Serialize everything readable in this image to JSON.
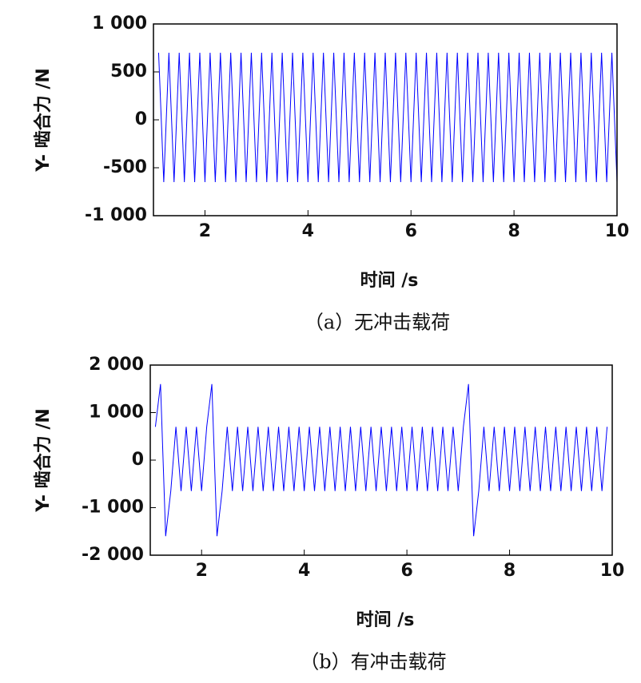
{
  "chart_data": [
    {
      "type": "line",
      "caption": "（a）无冲击载荷",
      "ylabel": "Y- 啮合力 /N",
      "xlabel": "时间 /s",
      "xlim": [
        1,
        10
      ],
      "ylim": [
        -1000,
        1000
      ],
      "xticks": [
        2,
        4,
        6,
        8,
        10
      ],
      "yticks": [
        {
          "value": -1000,
          "label": "-1 000"
        },
        -500,
        0,
        500,
        {
          "value": 1000,
          "label": "1 000"
        }
      ],
      "series": [
        {
          "color": "#0000ff",
          "x": [
            1.1,
            1.2,
            1.3,
            1.4,
            1.5,
            1.6,
            1.7,
            1.8,
            1.9,
            2,
            2.1,
            2.2,
            2.3,
            2.4,
            2.5,
            2.6,
            2.7,
            2.8,
            2.9,
            3,
            3.1,
            3.2,
            3.3,
            3.4,
            3.5,
            3.6,
            3.7,
            3.8,
            3.9,
            4,
            4.1,
            4.2,
            4.3,
            4.4,
            4.5,
            4.6,
            4.7,
            4.8,
            4.9,
            5,
            5.1,
            5.2,
            5.3,
            5.4,
            5.5,
            5.6,
            5.7,
            5.8,
            5.9,
            6,
            6.1,
            6.2,
            6.3,
            6.4,
            6.5,
            6.6,
            6.7,
            6.8,
            6.9,
            7,
            7.1,
            7.2,
            7.3,
            7.4,
            7.5,
            7.6,
            7.7,
            7.8,
            7.9,
            8,
            8.1,
            8.2,
            8.3,
            8.4,
            8.5,
            8.6,
            8.7,
            8.8,
            8.9,
            9,
            9.1,
            9.2,
            9.3,
            9.4,
            9.5,
            9.6,
            9.7,
            9.8,
            9.9,
            10
          ],
          "values": [
            700,
            -650,
            700,
            -650,
            700,
            -650,
            700,
            -650,
            700,
            -650,
            700,
            -650,
            700,
            -650,
            700,
            -650,
            700,
            -650,
            700,
            -650,
            700,
            -650,
            700,
            -650,
            700,
            -650,
            700,
            -650,
            700,
            -650,
            700,
            -650,
            700,
            -650,
            700,
            -650,
            700,
            -650,
            700,
            -650,
            700,
            -650,
            700,
            -650,
            700,
            -650,
            700,
            -650,
            700,
            -650,
            700,
            -650,
            700,
            -650,
            700,
            -650,
            700,
            -650,
            700,
            -650,
            700,
            -650,
            700,
            -650,
            700,
            -650,
            700,
            -650,
            700,
            -650,
            700,
            -650,
            700,
            -650,
            700,
            -650,
            700,
            -650,
            700,
            -650,
            700,
            -650,
            700,
            -650,
            700,
            -650,
            700,
            -650,
            700,
            -650
          ]
        }
      ]
    },
    {
      "type": "line",
      "caption": "（b）有冲击载荷",
      "ylabel": "Y- 啮合力 /N",
      "xlabel": "时间 /s",
      "xlim": [
        1,
        10
      ],
      "ylim": [
        -2000,
        2000
      ],
      "xticks": [
        2,
        4,
        6,
        8,
        10
      ],
      "yticks": [
        {
          "value": -2000,
          "label": "-2 000"
        },
        {
          "value": -1000,
          "label": "-1 000"
        },
        0,
        {
          "value": 1000,
          "label": "1 000"
        },
        {
          "value": 2000,
          "label": "2 000"
        }
      ],
      "series": [
        {
          "color": "#0000ff",
          "x": [
            1.1,
            1.2,
            1.3,
            1.4,
            1.5,
            1.6,
            1.7,
            1.8,
            1.9,
            2,
            2.1,
            2.2,
            2.3,
            2.4,
            2.5,
            2.6,
            2.7,
            2.8,
            2.9,
            3,
            3.1,
            3.2,
            3.3,
            3.4,
            3.5,
            3.6,
            3.7,
            3.8,
            3.9,
            4,
            4.1,
            4.2,
            4.3,
            4.4,
            4.5,
            4.6,
            4.7,
            4.8,
            4.9,
            5,
            5.1,
            5.2,
            5.3,
            5.4,
            5.5,
            5.6,
            5.7,
            5.8,
            5.9,
            6,
            6.1,
            6.2,
            6.3,
            6.4,
            6.5,
            6.6,
            6.7,
            6.8,
            6.9,
            7,
            7.1,
            7.2,
            7.3,
            7.4,
            7.5,
            7.6,
            7.7,
            7.8,
            7.9,
            8,
            8.1,
            8.2,
            8.3,
            8.4,
            8.5,
            8.6,
            8.7,
            8.8,
            8.9,
            9,
            9.1,
            9.2,
            9.3,
            9.4,
            9.5,
            9.6,
            9.7,
            9.8,
            9.9
          ],
          "values": [
            700,
            1600,
            -1600,
            -650,
            700,
            -650,
            700,
            -650,
            700,
            -650,
            700,
            1600,
            -1600,
            -650,
            700,
            -650,
            700,
            -650,
            700,
            -650,
            700,
            -650,
            700,
            -650,
            700,
            -650,
            700,
            -650,
            700,
            -650,
            700,
            -650,
            700,
            -650,
            700,
            -650,
            700,
            -650,
            700,
            -650,
            700,
            -650,
            700,
            -650,
            700,
            -650,
            700,
            -650,
            700,
            -650,
            700,
            -650,
            700,
            -650,
            700,
            -650,
            700,
            -650,
            700,
            -650,
            700,
            1600,
            -1600,
            -650,
            700,
            -650,
            700,
            -650,
            700,
            -650,
            700,
            -650,
            700,
            -650,
            700,
            -650,
            700,
            -650,
            700,
            -650,
            700,
            -650,
            700,
            -650,
            700,
            -650,
            700,
            -650,
            700
          ]
        }
      ]
    }
  ]
}
